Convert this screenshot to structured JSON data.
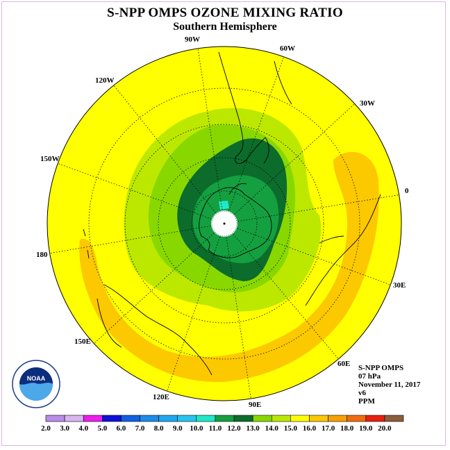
{
  "title": "S-NPP OMPS OZONE MIXING RATIO",
  "subtitle": "Southern Hemisphere",
  "longitude_labels": [
    "90W",
    "60W",
    "30W",
    "0",
    "30E",
    "60E",
    "90E",
    "120E",
    "150E",
    "180",
    "150W",
    "120W"
  ],
  "info": {
    "instrument": "S-NPP OMPS",
    "level": "07 hPa",
    "date": "November 11, 2017",
    "version": "v6",
    "units": "PPM"
  },
  "logo": {
    "text": "NOAA"
  },
  "colorbar": {
    "ticks": [
      "2.0",
      "3.0",
      "4.0",
      "5.0",
      "6.0",
      "7.0",
      "8.0",
      "9.0",
      "10.0",
      "11.0",
      "12.0",
      "13.0",
      "14.0",
      "15.0",
      "16.0",
      "17.0",
      "18.0",
      "19.0",
      "20.0"
    ],
    "colors": [
      "#b88ce8",
      "#d8b4f0",
      "#ee1cee",
      "#1010d8",
      "#1060e0",
      "#1c8ce8",
      "#20a8f0",
      "#28c4f0",
      "#20e8c8",
      "#14a040",
      "#0c6c2c",
      "#88d800",
      "#bce800",
      "#ffff00",
      "#fcc800",
      "#f8a000",
      "#f06c10",
      "#e82010",
      "#8c5c3c"
    ]
  },
  "map_colors": {
    "background": "#ffff00",
    "band_15_16": "#fcc800",
    "band_14_15": "#bce800",
    "band_13_14": "#88d800",
    "band_12_13": "#14a040",
    "band_11_12": "#0c6c2c",
    "band_10_11": "#20e8c8"
  }
}
